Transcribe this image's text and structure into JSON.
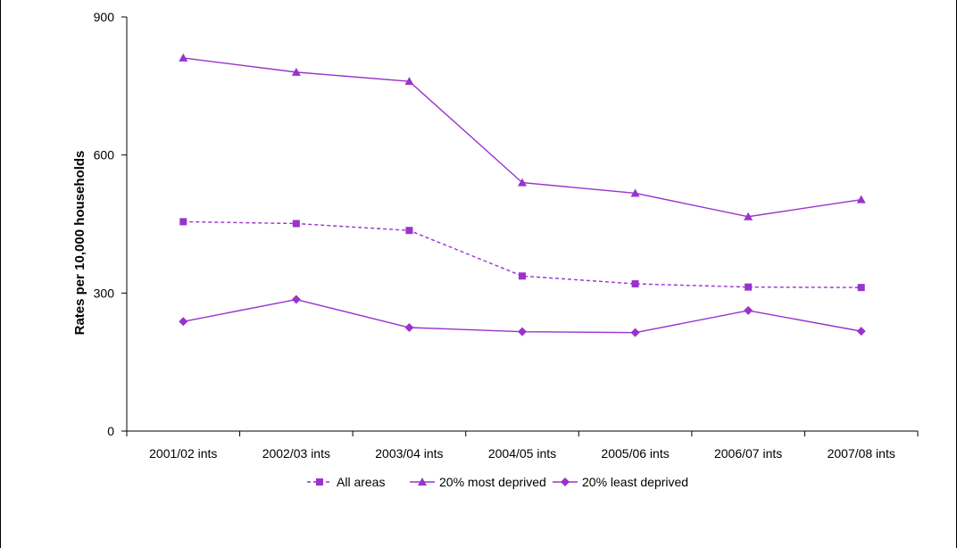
{
  "chart_data": {
    "type": "line",
    "title": "",
    "xlabel": "",
    "ylabel": "Rates per 10,000 households",
    "categories": [
      "2001/02 ints",
      "2002/03 ints",
      "2003/04 ints",
      "2004/05 ints",
      "2005/06 ints",
      "2006/07 ints",
      "2007/08 ints"
    ],
    "ylim": [
      0,
      900
    ],
    "yticks": [
      0,
      300,
      600,
      900
    ],
    "grid": false,
    "legend_position": "bottom",
    "series": [
      {
        "name": "All areas",
        "marker": "square",
        "dashed": true,
        "color": "#9933CC",
        "values": [
          455,
          451,
          436,
          337,
          320,
          313,
          312
        ]
      },
      {
        "name": "20% most deprived",
        "marker": "triangle",
        "dashed": false,
        "color": "#9933CC",
        "values": [
          811,
          780,
          760,
          540,
          517,
          466,
          503
        ]
      },
      {
        "name": "20% least deprived",
        "marker": "diamond",
        "dashed": false,
        "color": "#9933CC",
        "values": [
          238,
          286,
          225,
          216,
          214,
          262,
          217
        ]
      }
    ]
  }
}
